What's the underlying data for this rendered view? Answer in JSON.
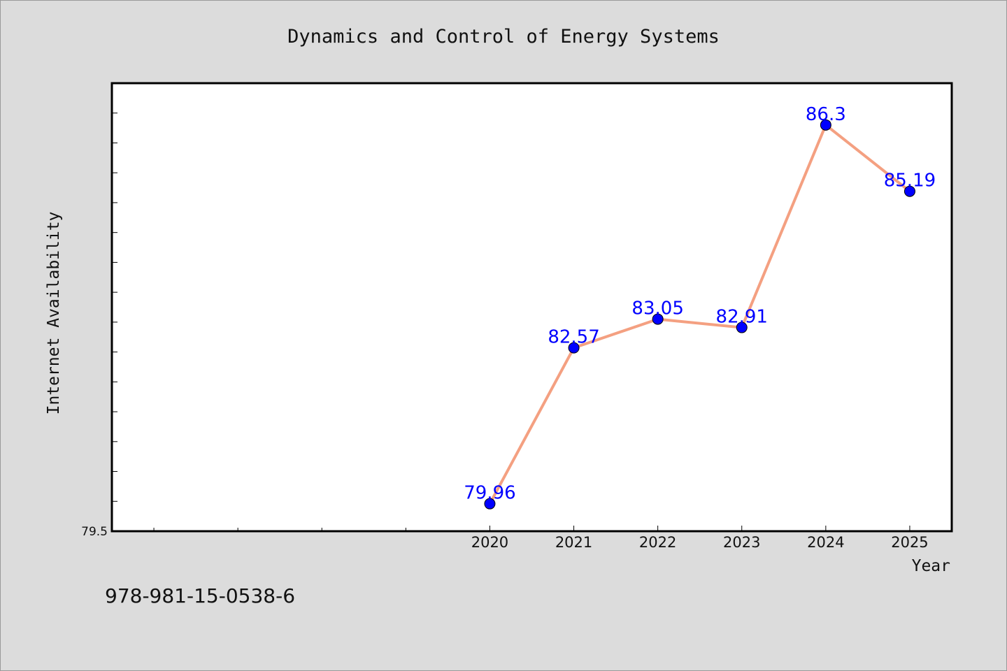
{
  "chart_data": {
    "type": "line",
    "title": "Dynamics and Control of Energy Systems",
    "xlabel": "Year",
    "ylabel": "Internet Availability",
    "x": [
      2020,
      2021,
      2022,
      2023,
      2024,
      2025
    ],
    "xticks": [
      "2020",
      "2021",
      "2022",
      "2023",
      "2024",
      "2025"
    ],
    "xlim": [
      2015.5,
      2025.5
    ],
    "ylim": [
      79.5,
      87.0
    ],
    "yticks_labeled": [
      "79.5"
    ],
    "series": [
      {
        "values": [
          79.96,
          82.57,
          83.05,
          82.91,
          86.3,
          85.19
        ],
        "labels": [
          "79.96",
          "82.57",
          "83.05",
          "82.91",
          "86.3",
          "85.19"
        ],
        "line_color": "#f4a081",
        "marker_color": "#0000ff"
      }
    ],
    "grid": false,
    "legend": "none"
  },
  "footer": {
    "isbn": "978-981-15-0538-6"
  },
  "colors": {
    "background": "#dcdcdc",
    "plot_background": "#ffffff",
    "line": "#f4a081",
    "marker": "#0000ff",
    "label": "#0000ff"
  }
}
